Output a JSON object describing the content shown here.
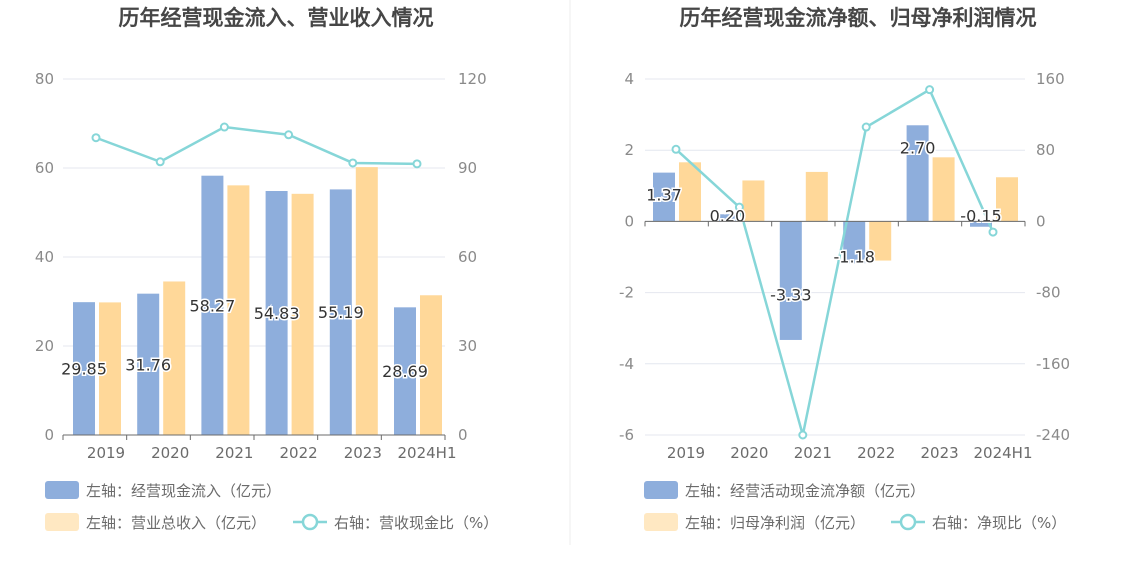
{
  "colors": {
    "bar_blue": "#8eaedc",
    "bar_orange": "#ffd899",
    "legend_orange": "#ffe8c2",
    "line": "#86d6d8",
    "grid": "#e4e7ef",
    "axis": "#6b6b6b"
  },
  "chart_data": [
    {
      "type": "bar",
      "title": "历年经营现金流入、营业收入情况",
      "categories": [
        "2019",
        "2020",
        "2021",
        "2022",
        "2023",
        "2024H1"
      ],
      "y_left": {
        "ticks": [
          "0",
          "20",
          "40",
          "60",
          "80"
        ],
        "ylim": [
          0,
          80
        ]
      },
      "y_right": {
        "ticks": [
          "0",
          "30",
          "60",
          "90",
          "120"
        ],
        "ylim": [
          0,
          120
        ]
      },
      "series": [
        {
          "name": "左轴：经营现金流入（亿元）",
          "axis": "left",
          "type": "bar",
          "values": [
            29.85,
            31.76,
            58.27,
            54.83,
            55.19,
            28.69
          ],
          "labels": [
            "29.85",
            "31.76",
            "58.27",
            "54.83",
            "55.19",
            "28.69"
          ]
        },
        {
          "name": "左轴：营业总收入（亿元）",
          "axis": "left",
          "type": "bar",
          "values": [
            29.8,
            34.5,
            56.1,
            54.2,
            60.2,
            31.4
          ]
        },
        {
          "name": "右轴：营收现金比（%）",
          "axis": "right",
          "type": "line",
          "values": [
            100.2,
            92.1,
            103.8,
            101.2,
            91.7,
            91.4
          ]
        }
      ],
      "legend_placement": "bottom-left",
      "grid": true
    },
    {
      "type": "bar",
      "title": "历年经营现金流净额、归母净利润情况",
      "categories": [
        "2019",
        "2020",
        "2021",
        "2022",
        "2023",
        "2024H1"
      ],
      "y_left": {
        "ticks": [
          "-6",
          "-4",
          "-2",
          "0",
          "2",
          "4"
        ],
        "ylim": [
          -6,
          4
        ]
      },
      "y_right": {
        "ticks": [
          "-240",
          "-160",
          "-80",
          "0",
          "80",
          "160"
        ],
        "ylim": [
          -240,
          160
        ]
      },
      "series": [
        {
          "name": "左轴：经营活动现金流净额（亿元）",
          "axis": "left",
          "type": "bar",
          "values": [
            1.37,
            0.2,
            -3.33,
            -1.18,
            2.7,
            -0.15
          ],
          "labels": [
            "1.37",
            "0.20",
            "-3.33",
            "-1.18",
            "2.70",
            "-0.15"
          ]
        },
        {
          "name": "左轴：归母净利润（亿元）",
          "axis": "left",
          "type": "bar",
          "values": [
            1.66,
            1.15,
            1.39,
            -1.1,
            1.8,
            1.24
          ]
        },
        {
          "name": "右轴：净现比（%）",
          "axis": "right",
          "type": "line",
          "values": [
            81,
            16,
            -240,
            106,
            148,
            -12
          ]
        }
      ],
      "legend_placement": "bottom-left",
      "grid": true
    }
  ]
}
